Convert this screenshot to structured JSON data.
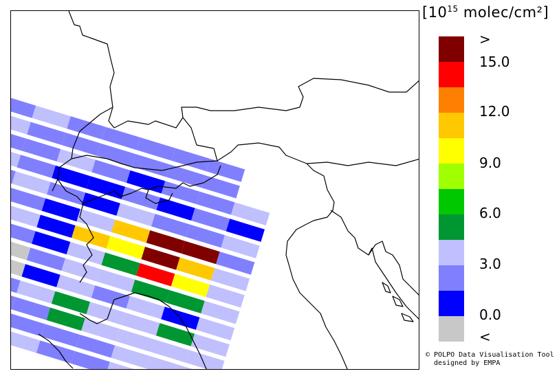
{
  "legend": {
    "title_prefix": "[10",
    "title_exp": "15",
    "title_suffix": " molec/cm²]",
    "bins": [
      {
        "color": "#800000"
      },
      {
        "color": "#ff0000"
      },
      {
        "color": "#ff8000"
      },
      {
        "color": "#ffc800"
      },
      {
        "color": "#ffff00"
      },
      {
        "color": "#a0ff00"
      },
      {
        "color": "#00c800"
      },
      {
        "color": "#009632"
      },
      {
        "color": "#c0c0ff"
      },
      {
        "color": "#8080ff"
      },
      {
        "color": "#0000ff"
      },
      {
        "color": "#c8c8c8"
      }
    ],
    "labels": [
      ">",
      "15.0",
      "12.0",
      "9.0",
      "6.0",
      "3.0",
      "0.0",
      "<"
    ]
  },
  "credits": {
    "line1": "© POLPO Data Visualisation Tool",
    "line2": "  designed by EMPA"
  },
  "swath": {
    "rows": [
      [
        "periwinkle",
        "lavender",
        "periwinkle",
        "periwinkle",
        "periwinkle",
        "periwinkle",
        "periwinkle"
      ],
      [
        "lavender",
        "periwinkle",
        "periwinkle",
        "periwinkle",
        "periwinkle",
        "periwinkle",
        "periwinkle"
      ],
      [
        "periwinkle",
        "periwinkle",
        "lavender",
        "periwinkle",
        "blue",
        "periwinkle",
        "periwinkle",
        "lavender"
      ],
      [
        "lavender",
        "periwinkle",
        "blue",
        "blue",
        "periwinkle",
        "blue",
        "periwinkle",
        "blue"
      ],
      [
        "periwinkle",
        "lavender",
        "periwinkle",
        "blue",
        "lavender",
        "periwinkle",
        "periwinkle",
        "lavender"
      ],
      [
        "lavender",
        "periwinkle",
        "blue",
        "lavender",
        "orange",
        "darkred",
        "darkred",
        "periwinkle"
      ],
      [
        "periwinkle",
        "lavender",
        "blue",
        "orange",
        "yellow",
        "darkred",
        "orange",
        "lavender"
      ],
      [
        "lavender",
        "periwinkle",
        "blue",
        "lavender",
        "green",
        "red",
        "yellow",
        "lavender"
      ],
      [
        "periwinkle",
        "grey",
        "periwinkle",
        "lavender",
        "lavender",
        "green",
        "green",
        "lavender"
      ],
      [
        "periwinkle",
        "grey",
        "blue",
        "lavender",
        "periwinkle",
        "lavender",
        "blue",
        "lavender"
      ],
      [
        "blue",
        "periwinkle",
        "lavender",
        "green",
        "lavender",
        "lavender",
        "green",
        "lavender"
      ],
      [
        "periwinkle",
        "periwinkle",
        "periwinkle",
        "green",
        "lavender",
        "lavender",
        "lavender",
        "lavender"
      ],
      [
        "periwinkle",
        "periwinkle",
        "periwinkle",
        "periwinkle",
        "periwinkle",
        "lavender",
        "lavender",
        "lavender"
      ],
      [
        "periwinkle",
        "periwinkle",
        "lavender",
        "periwinkle",
        "periwinkle",
        "lavender",
        "periwinkle",
        "periwinkle"
      ]
    ],
    "palette": {
      "blue": "#0000ff",
      "periwinkle": "#8080ff",
      "lavender": "#c0c0ff",
      "green": "#009632",
      "orange": "#ffc800",
      "yellow": "#ffff00",
      "red": "#ff0000",
      "darkred": "#800000",
      "grey": "#c8c8c8"
    }
  }
}
